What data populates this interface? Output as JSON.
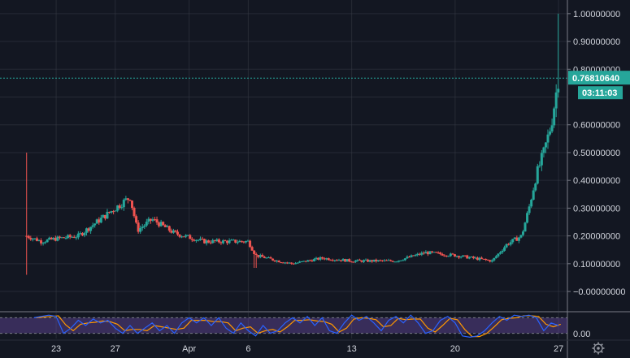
{
  "chart_data": {
    "type": "candlestick",
    "panes": [
      "price",
      "stoch_rsi"
    ],
    "colors": {
      "background": "#131722",
      "grid": "#363a45",
      "up": "#26a69a",
      "down": "#ef5350",
      "price_line": "#26a69a",
      "stoch_k": "#2962ff",
      "stoch_d": "#ff9800",
      "band_fill": "#7e57c2",
      "axis_text": "#d1d4dc"
    },
    "y_axis": {
      "range": [
        -0.07,
        1.02
      ],
      "tick_values": [
        1.0,
        0.9,
        0.8,
        0.7,
        0.6,
        0.5,
        0.4,
        0.3,
        0.2,
        0.1,
        0.0
      ],
      "tick_labels": [
        "1.00000000",
        "0.90000000",
        "0.80000000",
        "",
        "0.60000000",
        "0.50000000",
        "0.40000000",
        "0.30000000",
        "0.20000000",
        "0.10000000",
        "−0.00000000"
      ]
    },
    "x_axis": {
      "range": [
        19.2,
        57.6
      ],
      "tick_values": [
        23,
        27,
        32,
        36,
        43,
        50,
        57
      ],
      "tick_labels": [
        "23",
        "27",
        "Apr",
        "6",
        "13",
        "20",
        "27"
      ]
    },
    "last_price": {
      "value": 0.7681064,
      "label": "0.76810640",
      "countdown": "03:11:03"
    },
    "oscillator": {
      "range": [
        0,
        100
      ],
      "bands": [
        20,
        80
      ],
      "tick_labels": [
        "0.00"
      ]
    },
    "settings_icon": "gear-icon",
    "series_anchor_points": [
      [
        21,
        0.2
      ],
      [
        22,
        0.18
      ],
      [
        23,
        0.19
      ],
      [
        24.5,
        0.2
      ],
      [
        26,
        0.26
      ],
      [
        27,
        0.3
      ],
      [
        28,
        0.34
      ],
      [
        28.5,
        0.22
      ],
      [
        29.5,
        0.26
      ],
      [
        31,
        0.21
      ],
      [
        33,
        0.18
      ],
      [
        36,
        0.18
      ],
      [
        36.5,
        0.13
      ],
      [
        38,
        0.11
      ],
      [
        39,
        0.1
      ],
      [
        41,
        0.12
      ],
      [
        43,
        0.11
      ],
      [
        46,
        0.11
      ],
      [
        48,
        0.14
      ],
      [
        50,
        0.13
      ],
      [
        52.5,
        0.11
      ],
      [
        53.5,
        0.17
      ],
      [
        54.5,
        0.2
      ],
      [
        55,
        0.3
      ],
      [
        55.5,
        0.42
      ],
      [
        56,
        0.5
      ],
      [
        56.5,
        0.6
      ],
      [
        57,
        0.77
      ]
    ],
    "stoch_anchor_points": [
      [
        21.5,
        80
      ],
      [
        22.5,
        90
      ],
      [
        23,
        85
      ],
      [
        23.5,
        20
      ],
      [
        24,
        40
      ],
      [
        24.5,
        70
      ],
      [
        25,
        50
      ],
      [
        25.5,
        75
      ],
      [
        26,
        60
      ],
      [
        26.5,
        70
      ],
      [
        27,
        40
      ],
      [
        27.5,
        20
      ],
      [
        28,
        50
      ],
      [
        28.5,
        20
      ],
      [
        29,
        40
      ],
      [
        29.5,
        60
      ],
      [
        30,
        30
      ],
      [
        30.5,
        50
      ],
      [
        31,
        20
      ],
      [
        31.5,
        60
      ],
      [
        32,
        80
      ],
      [
        32.5,
        60
      ],
      [
        33,
        80
      ],
      [
        33.5,
        50
      ],
      [
        34,
        80
      ],
      [
        34.5,
        40
      ],
      [
        35,
        20
      ],
      [
        35.5,
        60
      ],
      [
        36,
        30
      ],
      [
        36.5,
        10
      ],
      [
        37,
        50
      ],
      [
        37.5,
        20
      ],
      [
        38,
        30
      ],
      [
        38.5,
        60
      ],
      [
        39,
        80
      ],
      [
        39.5,
        60
      ],
      [
        40,
        85
      ],
      [
        40.5,
        50
      ],
      [
        41,
        80
      ],
      [
        41.5,
        30
      ],
      [
        42,
        20
      ],
      [
        42.5,
        60
      ],
      [
        43,
        90
      ],
      [
        43.5,
        70
      ],
      [
        44,
        85
      ],
      [
        44.5,
        60
      ],
      [
        45,
        30
      ],
      [
        45.5,
        70
      ],
      [
        46,
        85
      ],
      [
        46.5,
        60
      ],
      [
        47,
        90
      ],
      [
        47.5,
        60
      ],
      [
        48,
        20
      ],
      [
        48.5,
        30
      ],
      [
        49,
        70
      ],
      [
        49.5,
        85
      ],
      [
        50,
        60
      ],
      [
        50.5,
        10
      ],
      [
        51,
        5
      ],
      [
        51.5,
        10
      ],
      [
        52,
        30
      ],
      [
        52.5,
        60
      ],
      [
        53,
        85
      ],
      [
        53.5,
        70
      ],
      [
        54,
        90
      ],
      [
        54.5,
        85
      ],
      [
        55,
        90
      ],
      [
        55.5,
        80
      ],
      [
        56,
        30
      ],
      [
        56.5,
        60
      ],
      [
        57,
        50
      ]
    ]
  }
}
